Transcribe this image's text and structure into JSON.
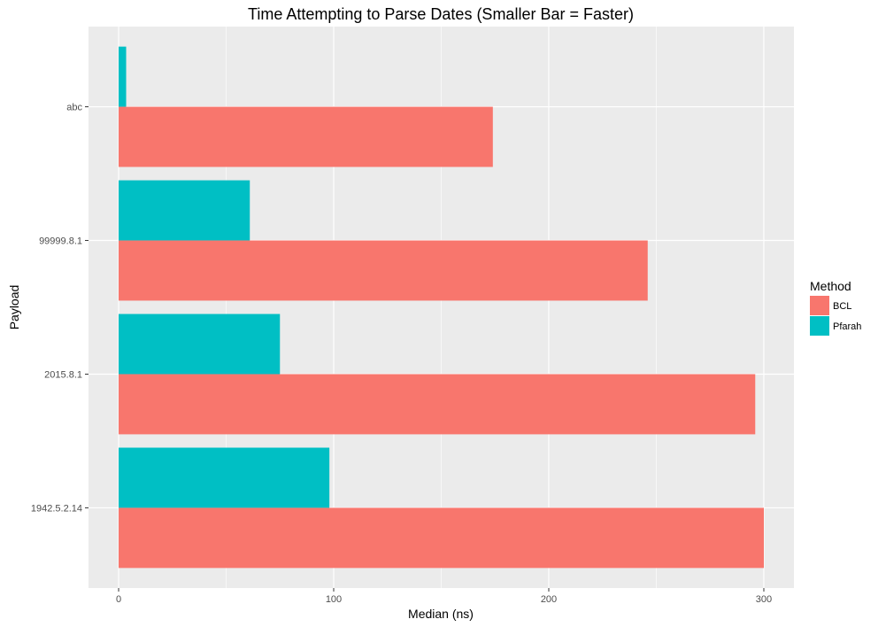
{
  "chart_data": {
    "type": "bar",
    "orientation": "horizontal",
    "title": "Time Attempting to Parse Dates (Smaller Bar = Faster)",
    "xlabel": "Median (ns)",
    "ylabel": "Payload",
    "categories": [
      "abc",
      "99999.8.1",
      "2015.8.1",
      "1942.5.2.14"
    ],
    "x_ticks": [
      0,
      100,
      200,
      300
    ],
    "xlim": [
      -14,
      314
    ],
    "grid": true,
    "legend": {
      "title": "Method",
      "position": "right"
    },
    "series": [
      {
        "name": "BCL",
        "color": "#F8766D",
        "values": [
          174,
          246,
          296,
          300
        ]
      },
      {
        "name": "Pfarah",
        "color": "#00BFC4",
        "values": [
          3.5,
          61,
          75,
          98
        ]
      }
    ]
  }
}
